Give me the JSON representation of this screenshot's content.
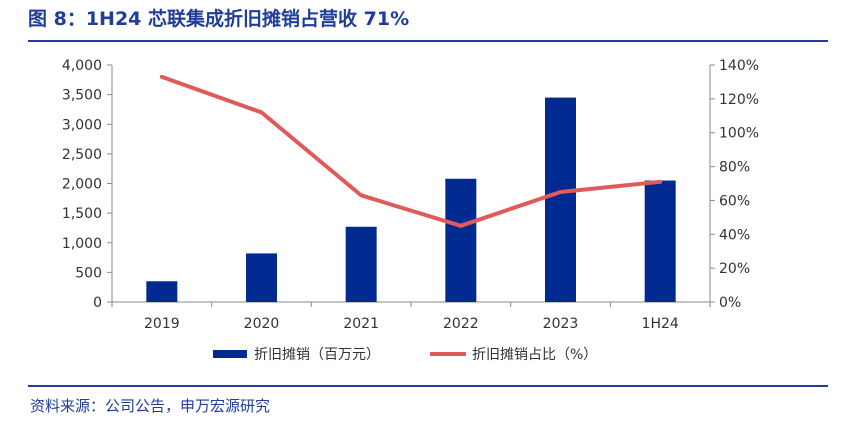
{
  "header": {
    "title": "图 8：1H24 芯联集成折旧摊销占营收 71%"
  },
  "footer": {
    "source": "资料来源：公司公告，申万宏源研究"
  },
  "colors": {
    "bar": "#002a8f",
    "line": "#e05a5a",
    "accent": "#1f3d99"
  },
  "chart_data": {
    "type": "bar",
    "categories": [
      "2019",
      "2020",
      "2021",
      "2022",
      "2023",
      "1H24"
    ],
    "series": [
      {
        "name": "折旧摊销（百万元）",
        "type": "bar",
        "axis": "left",
        "values": [
          350,
          820,
          1270,
          2080,
          3450,
          2050
        ]
      },
      {
        "name": "折旧摊销占比（%）",
        "type": "line",
        "axis": "right",
        "values": [
          133,
          112,
          63,
          45,
          65,
          71
        ]
      }
    ],
    "y_left": {
      "ylim": [
        0,
        4000
      ],
      "ticks": [
        "0",
        "500",
        "1,000",
        "1,500",
        "2,000",
        "2,500",
        "3,000",
        "3,500",
        "4,000"
      ]
    },
    "y_right": {
      "ylim": [
        0,
        140
      ],
      "ticks": [
        "0%",
        "20%",
        "40%",
        "60%",
        "80%",
        "100%",
        "120%",
        "140%"
      ]
    },
    "legend_position": "bottom",
    "grid": false
  }
}
